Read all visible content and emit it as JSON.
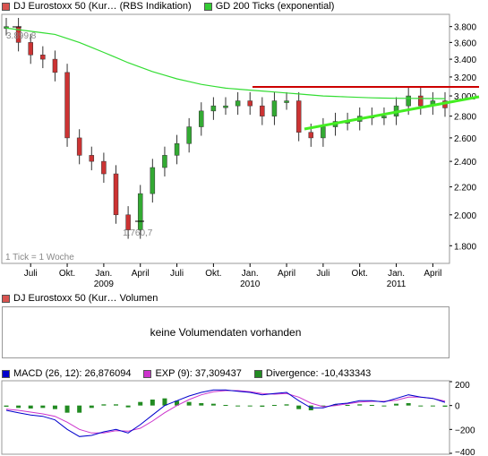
{
  "legend_top": [
    {
      "label": "DJ Eurostoxx 50 (Kur… (RBS Indikation)",
      "color": "#d9534f"
    },
    {
      "label": "GD 200 Ticks (exponential)",
      "color": "#33cc33"
    }
  ],
  "price_panel": {
    "tick_note": "1 Tick = 1 Woche",
    "high_label": "3.899,8",
    "low_label": "1.760,7",
    "y_ticks": [
      "3.800",
      "3.600",
      "3.400",
      "3.200",
      "3.000",
      "2.800",
      "2.600",
      "2.400",
      "2.200",
      "2.000",
      "1.800"
    ],
    "x_ticks": [
      "Juli",
      "Okt.",
      "Jan.",
      "April",
      "Juli",
      "Okt.",
      "Jan.",
      "April",
      "Juli",
      "Okt.",
      "Jan.",
      "April"
    ],
    "year_labels": [
      "2009",
      "2010",
      "2011"
    ]
  },
  "volume_panel": {
    "legend": {
      "label": "DJ Eurostoxx 50 (Kur… Volumen",
      "color": "#d9534f"
    },
    "message": "keine Volumendaten vorhanden"
  },
  "macd_panel": {
    "legend": [
      {
        "label": "MACD (26, 12): 26,876094",
        "color": "#0000cc"
      },
      {
        "label": "EXP (9): 37,309437",
        "color": "#cc33cc"
      },
      {
        "label": "Divergence: -10,433343",
        "color": "#228b22"
      }
    ],
    "y_ticks": [
      "200",
      "0",
      "−200",
      "−400"
    ]
  },
  "chart_data": [
    {
      "type": "line",
      "x": [
        "2008-05",
        "2008-06",
        "2008-07",
        "2008-08",
        "2008-09",
        "2008-10",
        "2008-11",
        "2008-12",
        "2009-01",
        "2009-02",
        "2009-03",
        "2009-04",
        "2009-05",
        "2009-06",
        "2009-07",
        "2009-08",
        "2009-09",
        "2009-10",
        "2009-11",
        "2009-12",
        "2010-01",
        "2010-02",
        "2010-03",
        "2010-04",
        "2010-05",
        "2010-06",
        "2010-07",
        "2010-08",
        "2010-09",
        "2010-10",
        "2010-11",
        "2010-12",
        "2011-01",
        "2011-02",
        "2011-03",
        "2011-04",
        "2011-05"
      ],
      "series": [
        {
          "name": "DJ Eurostoxx 50 (Kur… (RBS Indikation)",
          "values": [
            3800,
            3600,
            3450,
            3400,
            3250,
            2600,
            2450,
            2400,
            2300,
            2000,
            1900,
            2150,
            2350,
            2450,
            2550,
            2700,
            2850,
            2900,
            2900,
            2950,
            2900,
            2800,
            2950,
            2950,
            2650,
            2600,
            2700,
            2750,
            2750,
            2800,
            2800,
            2800,
            2900,
            3000,
            2900,
            2950,
            2880
          ]
        },
        {
          "name": "GD 200 Ticks (exponential)",
          "values": [
            3780,
            3760,
            3740,
            3720,
            3700,
            3650,
            3600,
            3540,
            3480,
            3420,
            3360,
            3310,
            3260,
            3220,
            3180,
            3150,
            3120,
            3100,
            3080,
            3070,
            3060,
            3050,
            3040,
            3030,
            3020,
            3010,
            3000,
            2995,
            2990,
            2985,
            2980,
            2978,
            2976,
            2975,
            2974,
            2973,
            2972
          ]
        }
      ],
      "annotations": [
        "3.899,8",
        "1.760,7"
      ],
      "yscale": "log",
      "ylim": [
        1700,
        3950
      ],
      "legend": "top-left",
      "grid": false
    },
    {
      "type": "line",
      "x": [
        "2008-05",
        "2008-06",
        "2008-07",
        "2008-08",
        "2008-09",
        "2008-10",
        "2008-11",
        "2008-12",
        "2009-01",
        "2009-02",
        "2009-03",
        "2009-04",
        "2009-05",
        "2009-06",
        "2009-07",
        "2009-08",
        "2009-09",
        "2009-10",
        "2009-11",
        "2009-12",
        "2010-01",
        "2010-02",
        "2010-03",
        "2010-04",
        "2010-05",
        "2010-06",
        "2010-07",
        "2010-08",
        "2010-09",
        "2010-10",
        "2010-11",
        "2010-12",
        "2011-01",
        "2011-02",
        "2011-03",
        "2011-04",
        "2011-05"
      ],
      "series": [
        {
          "name": "MACD (26, 12)",
          "values": [
            -40,
            -60,
            -80,
            -90,
            -120,
            -200,
            -260,
            -250,
            -220,
            -200,
            -230,
            -160,
            -80,
            0,
            40,
            80,
            110,
            130,
            130,
            120,
            110,
            90,
            100,
            110,
            40,
            -20,
            -20,
            10,
            20,
            40,
            40,
            30,
            60,
            90,
            70,
            60,
            27
          ]
        },
        {
          "name": "EXP (9)",
          "values": [
            -30,
            -40,
            -55,
            -70,
            -90,
            -140,
            -200,
            -230,
            -230,
            -210,
            -215,
            -190,
            -130,
            -60,
            0,
            50,
            90,
            115,
            125,
            125,
            115,
            100,
            95,
            100,
            70,
            20,
            -10,
            0,
            15,
            30,
            35,
            35,
            45,
            70,
            70,
            60,
            37
          ]
        },
        {
          "name": "Divergence",
          "values": [
            -10,
            -20,
            -25,
            -20,
            -30,
            -60,
            -60,
            -20,
            10,
            10,
            -15,
            30,
            50,
            60,
            40,
            30,
            20,
            15,
            5,
            -5,
            -5,
            -10,
            5,
            10,
            -30,
            -40,
            -10,
            10,
            5,
            10,
            5,
            -5,
            15,
            20,
            0,
            0,
            -10
          ]
        }
      ],
      "ylim": [
        -400,
        200
      ],
      "legend": "top-left",
      "grid": false
    }
  ]
}
